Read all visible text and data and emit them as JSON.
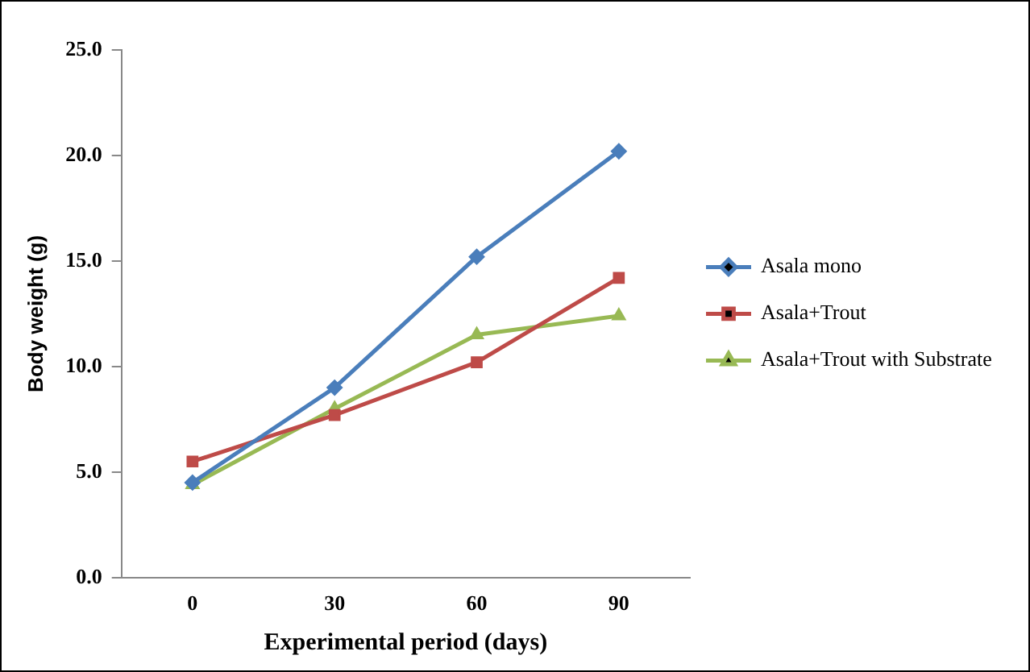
{
  "chart_data": {
    "type": "line",
    "xlabel": "Experimental period (days)",
    "ylabel": "Body weight (g)",
    "categories": [
      "0",
      "30",
      "60",
      "90"
    ],
    "series": [
      {
        "name": "Asala mono",
        "color": "#4a7ebb",
        "marker": "diamond",
        "values": [
          4.5,
          9.0,
          15.2,
          20.2
        ]
      },
      {
        "name": "Asala+Trout",
        "color": "#be4b48",
        "marker": "square",
        "values": [
          5.5,
          7.7,
          10.2,
          14.2
        ]
      },
      {
        "name": "Asala+Trout with Substrate",
        "color": "#98b954",
        "marker": "triangle",
        "values": [
          4.4,
          8.0,
          11.5,
          12.4
        ]
      }
    ],
    "ylim": [
      0,
      25
    ],
    "yticks": [
      {
        "value": 0,
        "label": "0.0"
      },
      {
        "value": 5,
        "label": "5.0"
      },
      {
        "value": 10,
        "label": "10.0"
      },
      {
        "value": 15,
        "label": "15.0"
      },
      {
        "value": 20,
        "label": "20.0"
      },
      {
        "value": 25,
        "label": "25.0"
      }
    ],
    "grid": false,
    "legend": "right",
    "line_style": "solid"
  }
}
